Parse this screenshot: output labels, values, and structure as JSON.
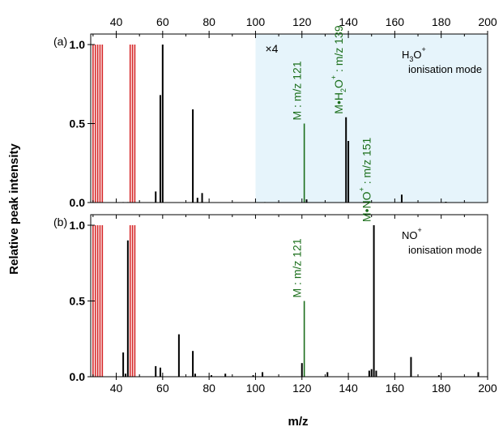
{
  "colors": {
    "peak": "#000000",
    "excluded": "#d62728",
    "annotation": "#1a6e1a",
    "highlight": "#e6f4fb"
  },
  "chart_data": {
    "type": "bar",
    "xlabel": "m/z",
    "ylabel": "Relative peak intensity",
    "xlim": [
      29,
      200
    ],
    "top_xticks": [
      40,
      60,
      80,
      100,
      120,
      140,
      160,
      180,
      200
    ],
    "bottom_xticks": [
      40,
      60,
      80,
      100,
      120,
      140,
      160,
      180,
      200
    ],
    "yticks": [
      "0.0",
      "0.5",
      "1.0"
    ],
    "excluded_mz": [
      30,
      31,
      32,
      33,
      34,
      46,
      47,
      48
    ],
    "panels": [
      {
        "tag": "(a)",
        "ylim": [
          0,
          1.0
        ],
        "mode_ion": "H",
        "mode_ion_sub": "3",
        "mode_ion_rest": "O",
        "mode_ion_sup": "+",
        "mode_text": "ionisation mode",
        "highlight_range": [
          100,
          200
        ],
        "multiplier": "×4",
        "peaks": [
          {
            "mz": 43,
            "y": 0.003
          },
          {
            "mz": 45,
            "y": 0.003
          },
          {
            "mz": 57,
            "y": 0.07
          },
          {
            "mz": 59,
            "y": 0.68
          },
          {
            "mz": 60,
            "y": 1.0
          },
          {
            "mz": 73,
            "y": 0.59
          },
          {
            "mz": 75,
            "y": 0.03
          },
          {
            "mz": 77,
            "y": 0.06
          },
          {
            "mz": 104,
            "y": 0.003
          },
          {
            "mz": 122,
            "y": 0.02
          },
          {
            "mz": 139,
            "y": 0.54
          },
          {
            "mz": 140,
            "y": 0.39
          },
          {
            "mz": 163,
            "y": 0.05
          },
          {
            "mz": 182,
            "y": 0.005
          }
        ],
        "annotations": [
          {
            "mz": 121,
            "y": 0.5,
            "parts": [
              "M : m/z 121"
            ]
          },
          {
            "mz": 139,
            "y": 0.54,
            "parts": [
              "M•H",
              "2",
              "O",
              "+",
              " : m/z 139"
            ]
          }
        ]
      },
      {
        "tag": "(b)",
        "ylim": [
          0,
          1.0
        ],
        "mode_ion": "NO",
        "mode_ion_sub": "",
        "mode_ion_rest": "",
        "mode_ion_sup": "+",
        "mode_text": "ionisation mode",
        "peaks": [
          {
            "mz": 43,
            "y": 0.16
          },
          {
            "mz": 44,
            "y": 0.02
          },
          {
            "mz": 45,
            "y": 0.9
          },
          {
            "mz": 57,
            "y": 0.07
          },
          {
            "mz": 59,
            "y": 0.06
          },
          {
            "mz": 67,
            "y": 0.28
          },
          {
            "mz": 73,
            "y": 0.17
          },
          {
            "mz": 74,
            "y": 0.02
          },
          {
            "mz": 81,
            "y": 0.01
          },
          {
            "mz": 87,
            "y": 0.02
          },
          {
            "mz": 99,
            "y": 0.01
          },
          {
            "mz": 103,
            "y": 0.03
          },
          {
            "mz": 120,
            "y": 0.09
          },
          {
            "mz": 131,
            "y": 0.03
          },
          {
            "mz": 149,
            "y": 0.04
          },
          {
            "mz": 150,
            "y": 0.05
          },
          {
            "mz": 151,
            "y": 1.0
          },
          {
            "mz": 152,
            "y": 0.04
          },
          {
            "mz": 167,
            "y": 0.13
          },
          {
            "mz": 179,
            "y": 0.01
          },
          {
            "mz": 196,
            "y": 0.03
          }
        ],
        "annotations": [
          {
            "mz": 121,
            "y": 0.5,
            "parts": [
              "M : m/z 121"
            ]
          },
          {
            "mz": 151,
            "y": 1.0,
            "parts": [
              "M•NO",
              "",
              "",
              "+",
              " : m/z 151"
            ]
          }
        ]
      }
    ]
  }
}
